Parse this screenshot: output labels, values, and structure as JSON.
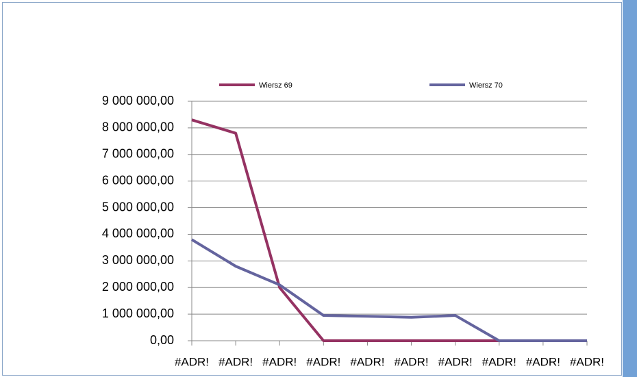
{
  "chart_data": {
    "type": "line",
    "categories": [
      "#ADR!",
      "#ADR!",
      "#ADR!",
      "#ADR!",
      "#ADR!",
      "#ADR!",
      "#ADR!",
      "#ADR!",
      "#ADR!",
      "#ADR!"
    ],
    "series": [
      {
        "name": "Wiersz 69",
        "color": "#953262",
        "values": [
          8300000,
          7800000,
          2000000,
          0,
          0,
          0,
          0,
          0,
          0,
          0
        ]
      },
      {
        "name": "Wiersz 70",
        "color": "#64649e",
        "values": [
          3800000,
          2800000,
          2100000,
          950000,
          920000,
          880000,
          950000,
          0,
          0,
          0
        ]
      }
    ],
    "ylim": [
      0,
      9000000
    ],
    "yticks": [
      {
        "value": 0,
        "label": "0,00"
      },
      {
        "value": 1000000,
        "label": "1 000 000,00"
      },
      {
        "value": 2000000,
        "label": "2 000 000,00"
      },
      {
        "value": 3000000,
        "label": "3 000 000,00"
      },
      {
        "value": 4000000,
        "label": "4 000 000,00"
      },
      {
        "value": 5000000,
        "label": "5 000 000,00"
      },
      {
        "value": 6000000,
        "label": "6 000 000,00"
      },
      {
        "value": 7000000,
        "label": "7 000 000,00"
      },
      {
        "value": 8000000,
        "label": "8 000 000,00"
      },
      {
        "value": 9000000,
        "label": "9 000 000,00"
      }
    ],
    "grid": true,
    "legend": "top"
  }
}
